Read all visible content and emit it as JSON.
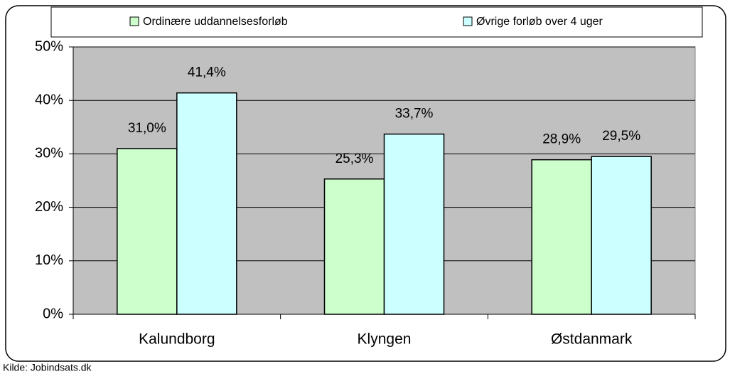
{
  "chart_data": {
    "type": "bar",
    "categories": [
      "Kalundborg",
      "Klyngen",
      "Østdanmark"
    ],
    "series": [
      {
        "name": "Ordinære uddannelsesforløb",
        "color": "#ccffcc",
        "values": [
          31.0,
          25.3,
          28.9
        ],
        "value_labels": [
          "31,0%",
          "25,3%",
          "28,9%"
        ]
      },
      {
        "name": "Øvrige forløb over 4 uger",
        "color": "#ccffff",
        "values": [
          41.4,
          33.7,
          29.5
        ],
        "value_labels": [
          "41,4%",
          "33,7%",
          "29,5%"
        ]
      }
    ],
    "ylim": [
      0,
      50
    ],
    "yticks": [
      {
        "value": 0,
        "label": "0%"
      },
      {
        "value": 10,
        "label": "10%"
      },
      {
        "value": 20,
        "label": "20%"
      },
      {
        "value": 30,
        "label": "30%"
      },
      {
        "value": 40,
        "label": "40%"
      },
      {
        "value": 50,
        "label": "50%"
      }
    ],
    "grid": true,
    "legend": "top",
    "plot_background": "#c0c0c0",
    "source": "Kilde: Jobindsats.dk"
  }
}
